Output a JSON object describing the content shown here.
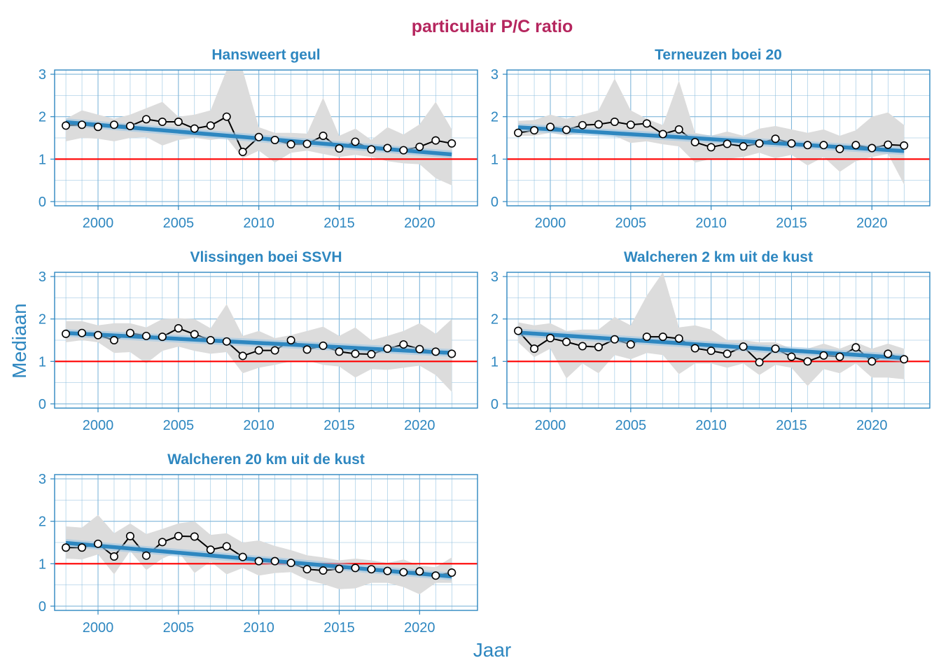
{
  "colors": {
    "title": "#B5265E",
    "accent": "#2E87C0",
    "grid": "#7FB6DA",
    "ref_line": "#FF0000",
    "band": "#DCDCDC",
    "data_line": "#000000",
    "trend": "#2E87C0",
    "trend_ci": "#9EC7E5"
  },
  "chart_data": {
    "type": "line",
    "title": "particulair P/C ratio",
    "xlabel": "Jaar",
    "ylabel": "Mediaan",
    "xlim": [
      1997.3,
      2023.6
    ],
    "ylim": [
      -0.1,
      3.1
    ],
    "x_ticks": [
      2000,
      2005,
      2010,
      2015,
      2020
    ],
    "y_ticks": [
      0,
      1,
      2,
      3
    ],
    "reference_line": 1,
    "years": [
      1998,
      1999,
      2000,
      2001,
      2002,
      2003,
      2004,
      2005,
      2006,
      2007,
      2008,
      2009,
      2010,
      2011,
      2012,
      2013,
      2014,
      2015,
      2016,
      2017,
      2018,
      2019,
      2020,
      2021,
      2022
    ],
    "panels": [
      {
        "title": "Hansweert geul",
        "median": [
          1.79,
          1.81,
          1.76,
          1.81,
          1.78,
          1.94,
          1.88,
          1.88,
          1.72,
          1.79,
          2.0,
          1.17,
          1.52,
          1.45,
          1.35,
          1.36,
          1.55,
          1.25,
          1.41,
          1.23,
          1.26,
          1.21,
          1.29,
          1.44,
          1.37
        ],
        "band_upper": [
          1.95,
          2.15,
          2.05,
          1.95,
          2.05,
          2.2,
          2.35,
          2.0,
          2.05,
          2.15,
          3.1,
          3.1,
          1.75,
          1.62,
          1.62,
          1.6,
          2.45,
          1.55,
          1.72,
          1.45,
          1.75,
          1.58,
          1.82,
          2.35,
          1.7
        ],
        "band_lower": [
          1.42,
          1.5,
          1.48,
          1.42,
          1.5,
          1.52,
          1.32,
          1.45,
          1.5,
          1.45,
          1.5,
          1.02,
          1.2,
          0.92,
          1.15,
          1.2,
          1.12,
          1.05,
          1.1,
          1.05,
          0.95,
          0.9,
          0.88,
          0.55,
          0.38
        ],
        "trend": [
          1.87,
          1.11
        ]
      },
      {
        "title": "Terneuzen boei 20",
        "median": [
          1.62,
          1.68,
          1.76,
          1.69,
          1.8,
          1.82,
          1.88,
          1.81,
          1.84,
          1.59,
          1.7,
          1.4,
          1.28,
          1.36,
          1.3,
          1.37,
          1.48,
          1.37,
          1.33,
          1.33,
          1.24,
          1.33,
          1.26,
          1.34,
          1.32
        ],
        "band_upper": [
          1.9,
          1.92,
          2.05,
          1.95,
          2.05,
          2.15,
          2.9,
          2.15,
          1.95,
          1.8,
          2.85,
          1.62,
          1.55,
          1.65,
          1.55,
          1.72,
          1.78,
          1.7,
          1.62,
          1.7,
          1.55,
          1.68,
          2.0,
          2.1,
          1.8
        ],
        "band_lower": [
          1.55,
          1.55,
          1.62,
          1.55,
          1.62,
          1.62,
          1.55,
          1.38,
          1.42,
          1.35,
          1.3,
          0.92,
          1.0,
          1.0,
          1.05,
          1.15,
          1.02,
          1.1,
          0.85,
          1.05,
          0.7,
          0.95,
          1.05,
          1.12,
          0.4
        ],
        "trend": [
          1.75,
          1.19
        ]
      },
      {
        "title": "Vlissingen boei SSVH",
        "median": [
          1.65,
          1.67,
          1.62,
          1.5,
          1.67,
          1.6,
          1.58,
          1.78,
          1.64,
          1.5,
          1.47,
          1.13,
          1.26,
          1.26,
          1.5,
          1.28,
          1.37,
          1.23,
          1.18,
          1.17,
          1.3,
          1.4,
          1.29,
          1.23,
          1.18
        ],
        "band_upper": [
          1.95,
          1.95,
          1.85,
          1.9,
          1.9,
          1.8,
          2.0,
          2.02,
          2.0,
          1.78,
          2.35,
          1.6,
          1.72,
          1.55,
          1.62,
          1.72,
          1.82,
          1.6,
          1.8,
          1.5,
          1.6,
          1.72,
          1.9,
          1.65,
          2.0
        ],
        "band_lower": [
          1.45,
          1.5,
          1.45,
          1.2,
          1.22,
          0.95,
          1.25,
          1.35,
          1.25,
          1.18,
          1.22,
          0.72,
          0.85,
          0.92,
          1.0,
          1.02,
          0.92,
          0.88,
          0.62,
          0.82,
          0.8,
          0.85,
          0.9,
          0.68,
          0.28
        ],
        "trend": [
          1.67,
          1.2
        ]
      },
      {
        "title": "Walcheren 2 km uit de kust",
        "median": [
          1.72,
          1.3,
          1.55,
          1.46,
          1.36,
          1.34,
          1.52,
          1.4,
          1.58,
          1.58,
          1.54,
          1.31,
          1.25,
          1.18,
          1.35,
          0.98,
          1.3,
          1.11,
          1.0,
          1.14,
          1.11,
          1.33,
          1.0,
          1.18,
          1.05
        ],
        "band_upper": [
          1.92,
          1.85,
          1.9,
          1.72,
          1.75,
          1.75,
          2.05,
          1.85,
          2.55,
          3.1,
          1.8,
          1.85,
          1.75,
          1.5,
          1.5,
          1.45,
          1.45,
          1.3,
          1.3,
          1.42,
          1.3,
          1.45,
          1.3,
          1.42,
          1.3
        ],
        "band_lower": [
          1.45,
          1.1,
          1.3,
          0.6,
          0.95,
          0.72,
          1.15,
          1.05,
          1.2,
          1.15,
          0.7,
          0.95,
          0.95,
          0.85,
          0.95,
          0.68,
          0.92,
          0.85,
          0.42,
          0.82,
          0.72,
          0.95,
          0.62,
          0.62,
          0.58
        ],
        "trend": [
          1.68,
          1.08
        ]
      },
      {
        "title": "Walcheren 20 km uit de kust",
        "median": [
          1.38,
          1.38,
          1.47,
          1.17,
          1.65,
          1.19,
          1.51,
          1.65,
          1.64,
          1.33,
          1.41,
          1.16,
          1.06,
          1.06,
          1.02,
          0.87,
          0.84,
          0.88,
          0.9,
          0.87,
          0.83,
          0.8,
          0.82,
          0.72,
          0.79
        ],
        "band_upper": [
          1.88,
          1.85,
          2.15,
          1.72,
          1.95,
          1.7,
          1.82,
          1.95,
          2.0,
          1.68,
          1.72,
          1.5,
          1.55,
          1.42,
          1.32,
          1.2,
          1.15,
          1.08,
          1.12,
          1.08,
          1.02,
          1.1,
          0.95,
          0.92,
          1.15
        ],
        "band_lower": [
          1.12,
          1.1,
          1.22,
          0.75,
          1.3,
          0.85,
          1.12,
          1.28,
          0.78,
          1.05,
          0.75,
          0.9,
          0.72,
          0.78,
          0.8,
          0.62,
          0.52,
          0.4,
          0.42,
          0.55,
          0.55,
          0.45,
          0.28,
          0.55,
          0.55
        ],
        "trend": [
          1.49,
          0.7
        ]
      }
    ]
  }
}
